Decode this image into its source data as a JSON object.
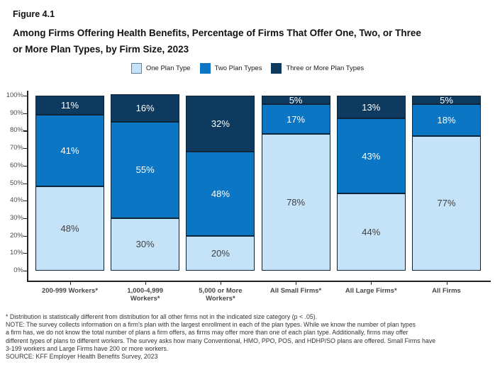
{
  "figure": {
    "number": "Figure 4.1",
    "title_lines": [
      "Among Firms Offering Health Benefits, Percentage of Firms That Offer One, Two, or Three",
      "or More Plan Types, by Firm Size, 2023"
    ]
  },
  "colors": {
    "one_plan_type": "#C4E3F9",
    "two_plan_types": "#0B76C4",
    "three_or_more_plan_types": "#0D3A5E",
    "bar_border": "#0E2439",
    "axis": "#222222"
  },
  "legend": {
    "items": [
      {
        "label": "One Plan Type",
        "color": "#C4E3F9",
        "border": "#5E7F9C"
      },
      {
        "label": "Two Plan Types",
        "color": "#0B76C4",
        "border": "#0B76C4"
      },
      {
        "label": "Three or More Plan Types",
        "color": "#0D3A5E",
        "border": "#0D3A5E"
      }
    ]
  },
  "chart_data": {
    "type": "bar",
    "stacked": true,
    "title": "Among Firms Offering Health Benefits, Percentage of Firms That Offer One, Two, or Three or More Plan Types, by Firm Size, 2023",
    "categories": [
      "200-999 Workers*",
      "1,000-4,999\nWorkers*",
      "5,000 or More\nWorkers*",
      "All Small Firms*",
      "All Large Firms*",
      "All Firms"
    ],
    "series": [
      {
        "name": "One Plan Type",
        "color": "#C4E3F9",
        "label_color": "#414141",
        "values": [
          48,
          30,
          20,
          78,
          44,
          77
        ]
      },
      {
        "name": "Two Plan Types",
        "color": "#0B76C4",
        "label_color": "#FFFFFF",
        "values": [
          41,
          55,
          48,
          17,
          43,
          18
        ]
      },
      {
        "name": "Three or More Plan Types",
        "color": "#0D3A5E",
        "label_color": "#FFFFFF",
        "values": [
          11,
          16,
          32,
          5,
          13,
          5
        ]
      }
    ],
    "value_suffix": "%",
    "xlabel": "",
    "ylabel": "",
    "ylim": [
      0,
      100
    ],
    "yticks": [
      "0%",
      "10%",
      "20%",
      "30%",
      "40%",
      "50%",
      "60%",
      "70%",
      "80%",
      "90%",
      "100%"
    ],
    "grid": false,
    "legend_position": "top"
  },
  "footnotes": {
    "stat_note": "* Distribution is statistically different from distribution for all other firms not in the indicated size category (p < .05).",
    "note_lines": [
      "NOTE: The survey collects information on a firm's plan with the largest enrollment in each of the plan types. While we know the number of plan types",
      "a firm has, we do not know the total number of plans a firm offers, as firms may offer more than one of each plan type. Additionally, firms may offer",
      "different types of plans to different workers. The survey asks how many Conventional, HMO, PPO, POS, and HDHP/SO plans are offered. Small Firms have",
      "3-199 workers and Large Firms have 200 or more workers."
    ],
    "source": "SOURCE: KFF Employer Health Benefits Survey, 2023"
  }
}
